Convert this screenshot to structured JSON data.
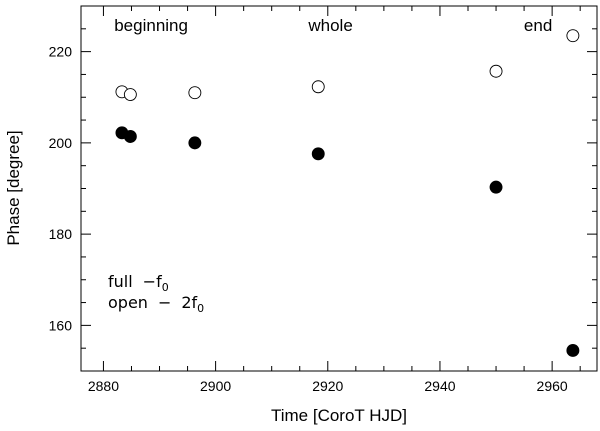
{
  "chart_data": {
    "type": "scatter",
    "xlabel": "Time [CoroT HJD]",
    "ylabel": "Phase [degree]",
    "xlim": [
      2876,
      2968
    ],
    "ylim": [
      150,
      230
    ],
    "x_ticks": [
      2880,
      2900,
      2920,
      2940,
      2960
    ],
    "y_ticks": [
      160,
      180,
      200,
      220
    ],
    "series": [
      {
        "marker": "filled-circle",
        "color": "#000000",
        "x": [
          2883.3,
          2884.8,
          2896.3,
          2918.3,
          2950.0,
          2963.7
        ],
        "y": [
          202.2,
          201.4,
          200.0,
          197.6,
          190.3,
          154.5
        ]
      },
      {
        "marker": "open-circle",
        "color": "#000000",
        "x": [
          2883.3,
          2884.8,
          2896.3,
          2918.3,
          2950.0,
          2963.7
        ],
        "y": [
          211.2,
          210.6,
          211.0,
          212.3,
          215.7,
          223.5
        ]
      }
    ],
    "annotations": [
      {
        "text": "beginning",
        "x": 2888.5,
        "y": 224.5
      },
      {
        "text": "whole",
        "x": 2920.5,
        "y": 224.5
      },
      {
        "text": "end",
        "x": 2957.5,
        "y": 224.5
      }
    ],
    "legend": [
      {
        "label": "full",
        "dash": "−",
        "symbol": "f",
        "sub": "0",
        "coef": ""
      },
      {
        "label": "open",
        "dash": "−",
        "symbol": "f",
        "sub": "0",
        "coef": "2"
      }
    ],
    "legend_position": "bottom-left"
  }
}
